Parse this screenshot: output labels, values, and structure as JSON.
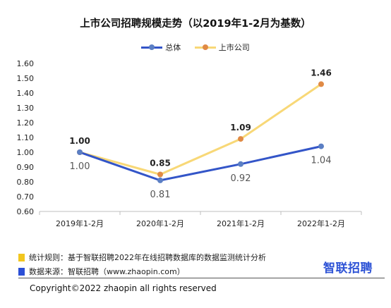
{
  "chart_data": {
    "type": "line",
    "title": "上市公司招聘规模走势（以2019年1-2月为基数）",
    "categories": [
      "2019年1-2月",
      "2020年1-2月",
      "2021年1-2月",
      "2022年1-2月"
    ],
    "ylim": [
      0.6,
      1.6
    ],
    "yticks": [
      "0.60",
      "0.70",
      "0.80",
      "0.90",
      "1.00",
      "1.10",
      "1.20",
      "1.30",
      "1.40",
      "1.50",
      "1.60"
    ],
    "legend_position": "top",
    "grid": false,
    "series": [
      {
        "name": "总体",
        "values": [
          1.0,
          0.81,
          0.92,
          1.04
        ],
        "labels": [
          "1.00",
          "0.81",
          "0.92",
          "1.04"
        ],
        "line_color": "#3355c8",
        "marker_color": "#5b7fc4",
        "label_position": "below"
      },
      {
        "name": "上市公司",
        "values": [
          1.0,
          0.85,
          1.09,
          1.46
        ],
        "labels": [
          "1.00",
          "0.85",
          "1.09",
          "1.46"
        ],
        "line_color": "#f8d877",
        "marker_color": "#e08a45",
        "label_position": "above"
      }
    ]
  },
  "footer": {
    "rule_text": "统计规则：基于智联招聘2022年在线招聘数据库的数据监测统计分析",
    "rule_color": "#f2c61f",
    "source_text": "数据来源：智联招聘（www.zhaopin.com）",
    "source_color": "#2b4fd6",
    "brand": "智联招聘",
    "copyright": "Copyright©2022 zhaopin all rights reserved"
  }
}
